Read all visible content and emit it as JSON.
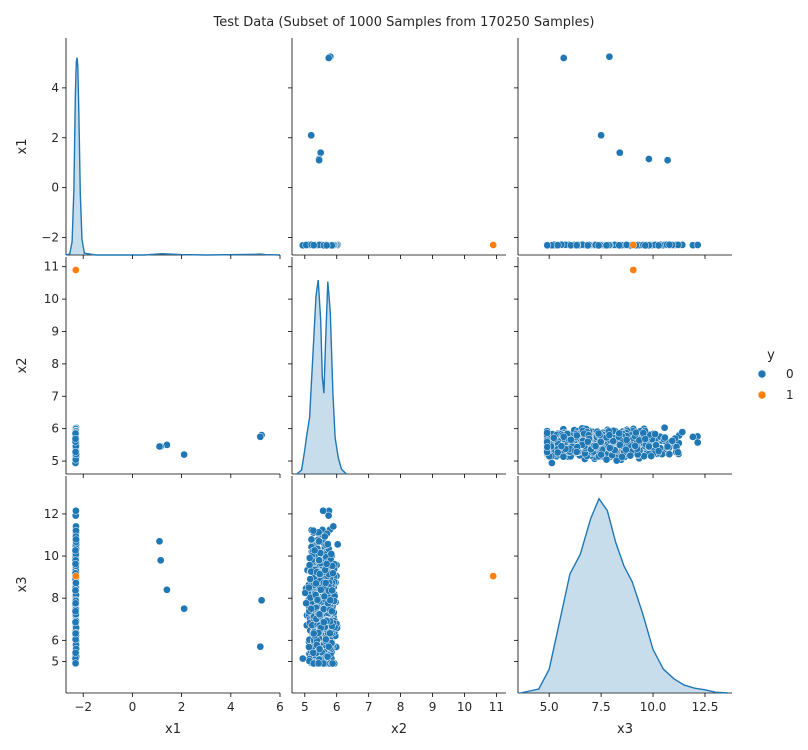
{
  "chart_data": {
    "type": "scatter",
    "title": "Test Data (Subset of 1000 Samples from 170250 Samples)",
    "variables": [
      "x1",
      "x2",
      "x3"
    ],
    "axes": {
      "x1": {
        "label": "x1",
        "range": [
          -2.7,
          6.0
        ],
        "ticks": [
          -2,
          0,
          2,
          4,
          6
        ]
      },
      "x2": {
        "label": "x2",
        "range": [
          4.6,
          11.3
        ],
        "ticks": [
          5,
          6,
          7,
          8,
          9,
          10,
          11
        ]
      },
      "x3": {
        "label": "x3",
        "range": [
          3.5,
          13.8
        ],
        "ticks": [
          5,
          6,
          8,
          10,
          12
        ],
        "ticks_x": [
          5.0,
          7.5,
          10.0,
          12.5
        ],
        "ticks_x_labels": [
          "5.0",
          "7.5",
          "10.0",
          "12.5"
        ]
      }
    },
    "x1_tick_labels": [
      "−2",
      "0",
      "2",
      "4",
      "6"
    ],
    "legend": {
      "title": "y",
      "placement": "right",
      "entries": [
        {
          "label": "0",
          "color": "#1f77b4"
        },
        {
          "label": "1",
          "color": "#ff7f0e"
        }
      ]
    },
    "grid": false,
    "diagonal": "kde",
    "kde_density_x1": {
      "x": [
        -2.7,
        -2.55,
        -2.45,
        -2.38,
        -2.32,
        -2.28,
        -2.25,
        -2.22,
        -2.18,
        -2.12,
        -2.05,
        -1.95,
        -1.5,
        0.5,
        1.0,
        1.2,
        1.5,
        2.0,
        3.0,
        5.0,
        5.2,
        5.4,
        6.0
      ],
      "y": [
        0.0,
        0.05,
        0.6,
        3.0,
        7.2,
        8.8,
        9.0,
        8.6,
        6.6,
        2.8,
        0.7,
        0.08,
        0.0,
        0.0,
        0.04,
        0.06,
        0.04,
        0.02,
        0.0,
        0.03,
        0.04,
        0.02,
        0.0
      ]
    },
    "kde_density_x2_by_class": [
      {
        "y": "0",
        "x": [
          4.75,
          4.9,
          5.0,
          5.05,
          5.15,
          5.25,
          5.35,
          5.42,
          5.5,
          5.55,
          5.6,
          5.65,
          5.72,
          5.8,
          5.88,
          5.95,
          6.05,
          6.15,
          6.3
        ],
        "density": [
          0.0,
          0.05,
          0.3,
          0.45,
          0.7,
          1.45,
          2.2,
          2.4,
          1.9,
          1.2,
          1.0,
          1.6,
          2.38,
          2.0,
          1.0,
          0.45,
          0.2,
          0.06,
          0.0
        ]
      },
      {
        "y": "1",
        "x": [
          10.9
        ],
        "density": [
          0.0
        ]
      }
    ],
    "kde_density_x3": {
      "x": [
        3.6,
        4.5,
        5.0,
        5.5,
        6.0,
        6.5,
        7.0,
        7.4,
        7.8,
        8.2,
        8.6,
        9.0,
        9.5,
        10.0,
        10.5,
        11.0,
        11.5,
        12.0,
        12.5,
        13.0,
        13.6
      ],
      "y": [
        0.0,
        0.005,
        0.03,
        0.09,
        0.15,
        0.175,
        0.22,
        0.245,
        0.23,
        0.19,
        0.16,
        0.14,
        0.1,
        0.055,
        0.03,
        0.018,
        0.01,
        0.006,
        0.004,
        0.001,
        0.0
      ]
    },
    "notable_points": [
      {
        "x1": 5.25,
        "x2": 5.8,
        "x3": 7.9,
        "y": "0"
      },
      {
        "x1": 5.2,
        "x2": 5.75,
        "x3": 5.7,
        "y": "0"
      },
      {
        "x1": 2.1,
        "x2": 5.2,
        "x3": 7.5,
        "y": "0"
      },
      {
        "x1": 1.4,
        "x2": 5.5,
        "x3": 8.4,
        "y": "0"
      },
      {
        "x1": 1.15,
        "x2": 5.45,
        "x3": 9.8,
        "y": "0"
      },
      {
        "x1": 1.1,
        "x2": 5.45,
        "x3": 10.7,
        "y": "0"
      },
      {
        "x1": -2.3,
        "x2": 10.9,
        "x3": 9.05,
        "y": "1"
      }
    ],
    "bulk_class0": {
      "x1": -2.3,
      "x2_range": [
        4.9,
        6.25
      ],
      "x3_range": [
        4.9,
        12.6
      ],
      "count": 993
    }
  }
}
